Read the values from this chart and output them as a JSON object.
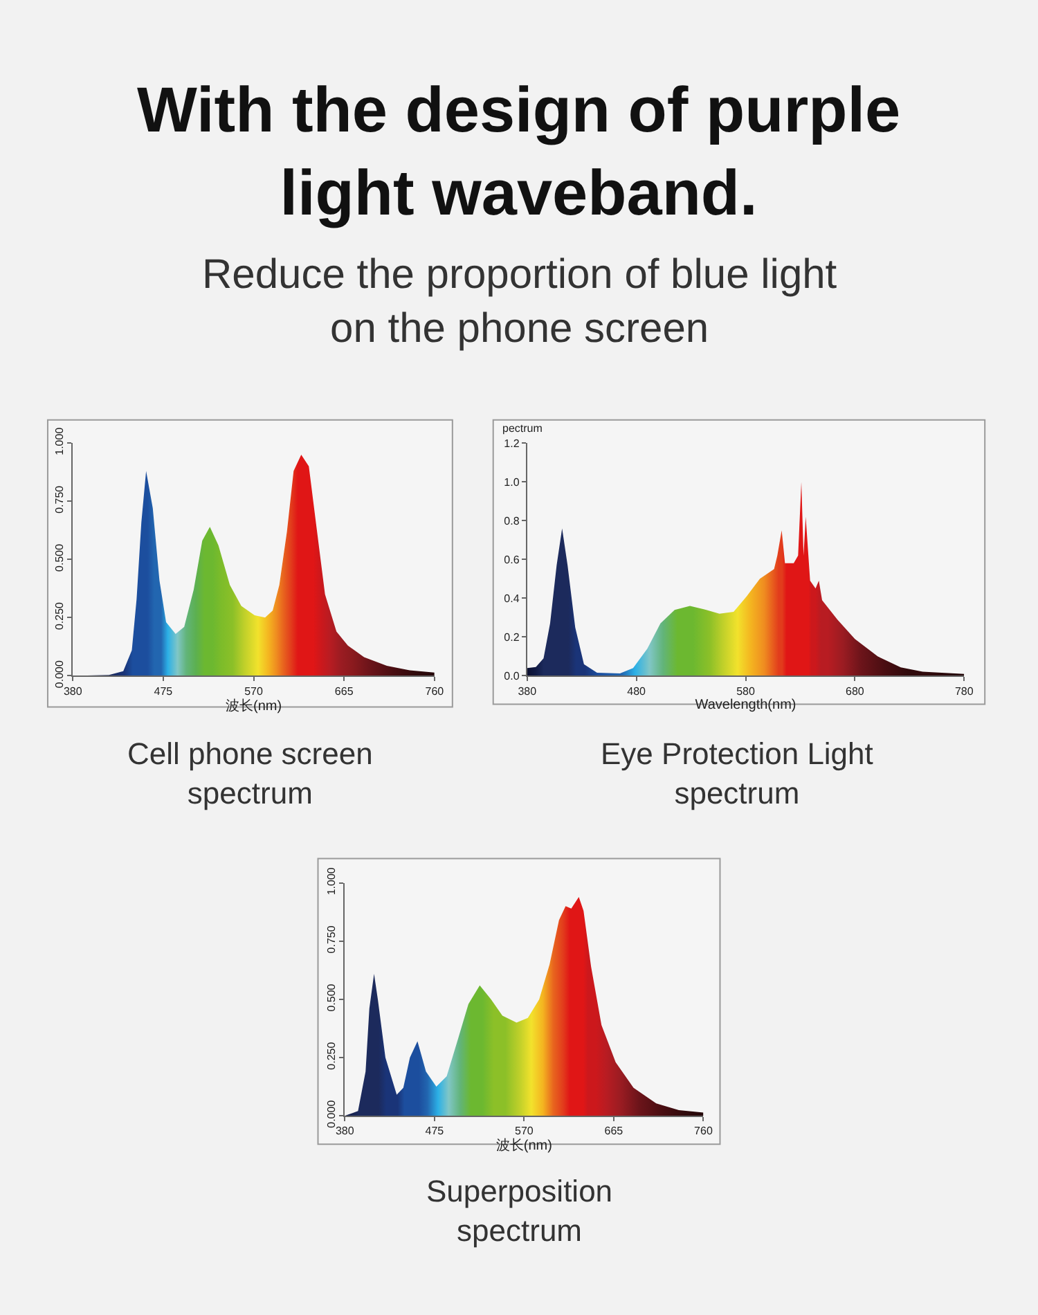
{
  "chart_data": [
    {
      "type": "area",
      "title": "With the design of purple\nlight waveband.",
      "subtitle": "Reduce the proportion of blue light\non the phone screen",
      "xlabel": "波长(nm)",
      "annotations": [
        "Cell phone screen\nspectrum"
      ],
      "xlim": [
        380,
        760
      ],
      "xticks": [
        380,
        475,
        570,
        665,
        760
      ],
      "ylim": [
        0,
        1
      ],
      "yticks": [
        {
          "value": 0,
          "label": "0.000"
        },
        {
          "value": 0.25,
          "label": "0.250"
        },
        {
          "value": 0.5,
          "label": "0.500"
        },
        {
          "value": 0.75,
          "label": "0.750"
        },
        {
          "value": 1,
          "label": "1.000"
        }
      ],
      "x": [
        380,
        418,
        433,
        442,
        447,
        452,
        457,
        464,
        471,
        478,
        488,
        497,
        507,
        516,
        524,
        533,
        545,
        557,
        571,
        582,
        590,
        597,
        605,
        612,
        620,
        628,
        636,
        645,
        657,
        669,
        686,
        710,
        734,
        760
      ],
      "series": [
        {
          "values": [
            0,
            0.004,
            0.02,
            0.11,
            0.33,
            0.66,
            0.88,
            0.72,
            0.41,
            0.23,
            0.18,
            0.21,
            0.37,
            0.58,
            0.64,
            0.56,
            0.39,
            0.3,
            0.26,
            0.25,
            0.28,
            0.39,
            0.62,
            0.88,
            0.95,
            0.9,
            0.64,
            0.35,
            0.19,
            0.13,
            0.08,
            0.043,
            0.024,
            0.014
          ],
          "colors": [
            "#101a45",
            "#1c2a5c",
            "#1a3478",
            "#1c4e9e",
            "#1c4e9e",
            "#1c4e9e",
            "#1c4e9e",
            "#2266b0",
            "#2266b0",
            "#2cb0e6",
            "#80c6c6",
            "#62b47a",
            "#5cb050",
            "#6cb830",
            "#6cb830",
            "#7cbc2a",
            "#8cc028",
            "#c0d02a",
            "#f2e22c",
            "#f4b420",
            "#ef8c20",
            "#e8641e",
            "#e23c1c",
            "#e01616",
            "#e01616",
            "#e01616",
            "#cc181c",
            "#b81c22",
            "#9a1c22",
            "#8a1a1e",
            "#6c141a",
            "#4a0e12",
            "#300a0c",
            "#200608"
          ]
        }
      ]
    },
    {
      "type": "area",
      "ylabel": "pectrum",
      "xlabel": "Wavelength(nm)",
      "annotations": [
        "Eye Protection Light\nspectrum"
      ],
      "xlim": [
        380,
        780
      ],
      "xticks": [
        380,
        480,
        580,
        680,
        780
      ],
      "ylim": [
        0,
        1.2
      ],
      "yticks": [
        {
          "value": 0,
          "label": "0.0"
        },
        {
          "value": 0.2,
          "label": "0.2"
        },
        {
          "value": 0.4,
          "label": "0.4"
        },
        {
          "value": 0.6,
          "label": "0.6"
        },
        {
          "value": 0.8,
          "label": "0.8"
        },
        {
          "value": 1,
          "label": "1.0"
        },
        {
          "value": 1.2,
          "label": "1.2"
        }
      ],
      "x": [
        380,
        388,
        395,
        401,
        407,
        412,
        417,
        424,
        432,
        444,
        465,
        477,
        490,
        502,
        515,
        529,
        544,
        556,
        569,
        581,
        593,
        606,
        609,
        613,
        616,
        624,
        628,
        631,
        633,
        635,
        639,
        644,
        647,
        650,
        664,
        680,
        701,
        722,
        742,
        780
      ],
      "series": [
        {
          "values": [
            0.04,
            0.045,
            0.09,
            0.27,
            0.57,
            0.76,
            0.57,
            0.25,
            0.06,
            0.016,
            0.012,
            0.04,
            0.14,
            0.27,
            0.34,
            0.36,
            0.34,
            0.32,
            0.33,
            0.41,
            0.5,
            0.55,
            0.62,
            0.75,
            0.58,
            0.58,
            0.62,
            1.0,
            0.62,
            0.82,
            0.49,
            0.45,
            0.49,
            0.39,
            0.29,
            0.19,
            0.1,
            0.044,
            0.021,
            0.01
          ],
          "colors": [
            "#0c1030",
            "#101a45",
            "#1c2a5c",
            "#1c2a5c",
            "#1c2a5c",
            "#1c2a5c",
            "#1c2a5c",
            "#1a3478",
            "#1a3478",
            "#1c4e9e",
            "#2266b0",
            "#2cb0e6",
            "#80c6c6",
            "#62b47a",
            "#6cb830",
            "#6cb830",
            "#8cc028",
            "#c0d02a",
            "#f2e22c",
            "#f4b420",
            "#ef8c20",
            "#e23c1c",
            "#e23c1c",
            "#e01616",
            "#e01616",
            "#e01616",
            "#e01616",
            "#e01616",
            "#e01616",
            "#cc181c",
            "#cc181c",
            "#b81c22",
            "#b81c22",
            "#b81c22",
            "#9a1c22",
            "#6c141a",
            "#4a0e12",
            "#300a0c",
            "#300a0c",
            "#200608"
          ]
        }
      ]
    },
    {
      "type": "area",
      "xlabel": "波长(nm)",
      "annotations": [
        "Superposition\nspectrum"
      ],
      "xlim": [
        380,
        760
      ],
      "xticks": [
        380,
        475,
        570,
        665,
        760
      ],
      "ylim": [
        0,
        1
      ],
      "yticks": [
        {
          "value": 0,
          "label": "0.000"
        },
        {
          "value": 0.25,
          "label": "0.250"
        },
        {
          "value": 0.5,
          "label": "0.500"
        },
        {
          "value": 0.75,
          "label": "0.750"
        },
        {
          "value": 1,
          "label": "1.000"
        }
      ],
      "x": [
        380,
        394,
        402,
        406,
        411,
        415,
        423,
        435,
        442,
        449,
        457,
        466,
        477,
        488,
        500,
        511,
        523,
        535,
        547,
        562,
        574,
        586,
        597,
        607,
        614,
        620,
        628,
        633,
        641,
        652,
        667,
        686,
        710,
        734,
        760
      ],
      "series": [
        {
          "values": [
            0,
            0.02,
            0.19,
            0.46,
            0.61,
            0.5,
            0.25,
            0.09,
            0.12,
            0.25,
            0.32,
            0.19,
            0.125,
            0.17,
            0.33,
            0.48,
            0.56,
            0.5,
            0.43,
            0.4,
            0.42,
            0.5,
            0.65,
            0.84,
            0.9,
            0.89,
            0.94,
            0.88,
            0.64,
            0.39,
            0.23,
            0.12,
            0.053,
            0.024,
            0.014
          ],
          "colors": [
            "#101a45",
            "#1c2a5c",
            "#1c2a5c",
            "#1c2a5c",
            "#1c2a5c",
            "#1c2a5c",
            "#1a3478",
            "#1a3478",
            "#1c4e9e",
            "#1c4e9e",
            "#1c4e9e",
            "#2266b0",
            "#2cb0e6",
            "#80c6c6",
            "#62b47a",
            "#6cb830",
            "#6cb830",
            "#8cc028",
            "#8cc028",
            "#c0d02a",
            "#f2e22c",
            "#f4b420",
            "#e8641e",
            "#e23c1c",
            "#e01616",
            "#e01616",
            "#e01616",
            "#cc181c",
            "#cc181c",
            "#b81c22",
            "#9a1c22",
            "#6c141a",
            "#4a0e12",
            "#300a0c",
            "#200608"
          ]
        }
      ]
    }
  ]
}
